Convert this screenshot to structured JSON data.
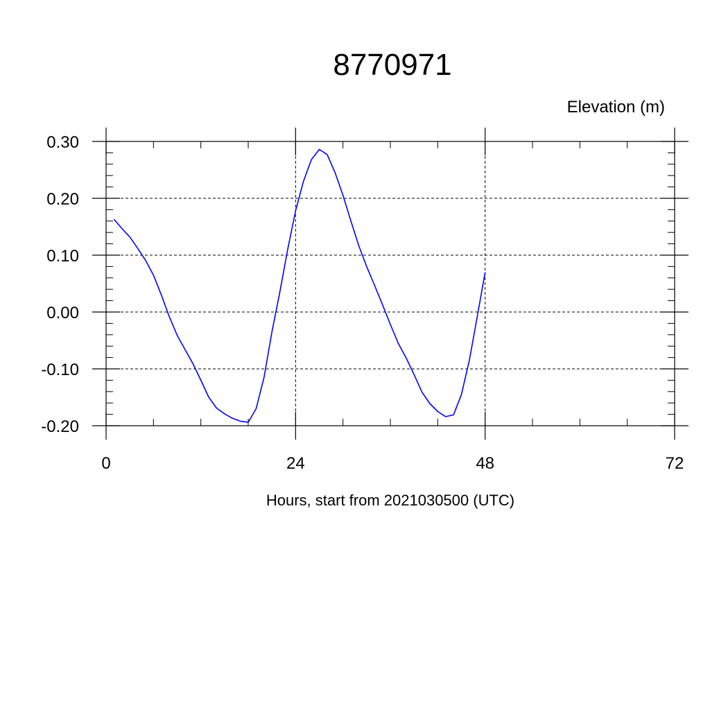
{
  "chart_data": {
    "type": "line",
    "title": "8770971",
    "ylabel": "Elevation (m)",
    "xlabel": "Hours, start from 2021030500 (UTC)",
    "xlim": [
      0,
      72
    ],
    "ylim": [
      -0.2,
      0.3
    ],
    "x_ticks": [
      0,
      24,
      48,
      72
    ],
    "x_tick_labels": [
      "0",
      "24",
      "48",
      "72"
    ],
    "y_ticks": [
      -0.2,
      -0.1,
      0.0,
      0.1,
      0.2,
      0.3
    ],
    "y_tick_labels": [
      "-0.20",
      "-0.10",
      "0.00",
      "0.10",
      "0.20",
      "0.30"
    ],
    "grid": true,
    "series": [
      {
        "color": "#0000ff",
        "x": [
          1,
          2,
          3,
          4,
          5,
          6,
          7,
          8,
          9,
          10,
          11,
          12,
          13,
          14,
          15,
          16,
          17,
          18,
          19,
          20,
          21,
          22,
          23,
          24,
          25,
          26,
          27,
          28,
          29,
          30,
          31,
          32,
          33,
          34,
          35,
          36,
          37,
          38,
          39,
          40,
          41,
          42,
          43,
          44,
          45,
          46,
          47,
          48
        ],
        "y": [
          0.163,
          0.147,
          0.132,
          0.112,
          0.091,
          0.065,
          0.03,
          -0.008,
          -0.041,
          -0.066,
          -0.091,
          -0.12,
          -0.15,
          -0.169,
          -0.179,
          -0.187,
          -0.192,
          -0.194,
          -0.17,
          -0.115,
          -0.035,
          0.035,
          0.11,
          0.178,
          0.23,
          0.268,
          0.286,
          0.277,
          0.245,
          0.205,
          0.16,
          0.117,
          0.08,
          0.047,
          0.013,
          -0.022,
          -0.055,
          -0.081,
          -0.11,
          -0.141,
          -0.161,
          -0.175,
          -0.184,
          -0.181,
          -0.145,
          -0.085,
          -0.008,
          0.07
        ]
      }
    ]
  }
}
